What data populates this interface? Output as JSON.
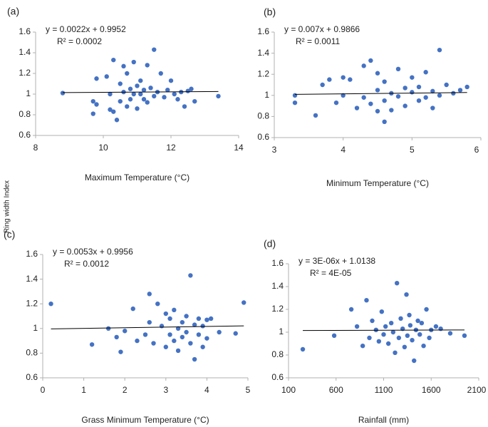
{
  "ylabel": "Ring width Index",
  "chart_data": [
    {
      "type": "scatter",
      "label": "(a)",
      "equation": "y = 0.0022x + 0.9952",
      "r_squared": "R² = 0.0002",
      "xlabel": "Maximum Temperature (°C)",
      "color": "#4472c4",
      "xlim": [
        8,
        14
      ],
      "ylim": [
        0.6,
        1.6
      ],
      "xticks": [
        8,
        10,
        12,
        14
      ],
      "yticks": [
        0.6,
        0.8,
        1,
        1.2,
        1.4,
        1.6
      ],
      "trendline": {
        "slope": 0.0022,
        "intercept": 0.9952
      },
      "x": [
        8.8,
        9.7,
        9.7,
        9.8,
        9.8,
        10.1,
        10.2,
        10.2,
        10.3,
        10.3,
        10.4,
        10.5,
        10.5,
        10.6,
        10.6,
        10.7,
        10.7,
        10.8,
        10.8,
        10.9,
        10.9,
        11.0,
        11.0,
        11.1,
        11.1,
        11.2,
        11.2,
        11.3,
        11.3,
        11.4,
        11.5,
        11.5,
        11.6,
        11.7,
        11.8,
        11.9,
        12.0,
        12.1,
        12.2,
        12.3,
        12.4,
        12.5,
        12.6,
        12.7,
        13.4
      ],
      "values": [
        1.01,
        0.93,
        0.81,
        1.15,
        0.9,
        1.17,
        0.85,
        1.0,
        1.33,
        0.83,
        0.75,
        1.1,
        0.93,
        1.02,
        1.27,
        0.88,
        1.2,
        1.05,
        0.95,
        1.31,
        1.0,
        1.08,
        0.86,
        1.0,
        1.13,
        0.95,
        1.04,
        1.28,
        0.92,
        1.06,
        1.43,
        0.98,
        1.02,
        1.2,
        0.97,
        1.04,
        1.13,
        1.0,
        0.95,
        1.02,
        0.88,
        1.03,
        1.05,
        0.93,
        0.98
      ]
    },
    {
      "type": "scatter",
      "label": "(b)",
      "equation": "y = 0.007x + 0.9866",
      "r_squared": "R² = 0.0011",
      "xlabel": "Minimum Temperature (°C)",
      "color": "#4472c4",
      "xlim": [
        3,
        6
      ],
      "ylim": [
        0.6,
        1.6
      ],
      "xticks": [
        3,
        4,
        5,
        6
      ],
      "yticks": [
        0.6,
        0.8,
        1,
        1.2,
        1.4,
        1.6
      ],
      "trendline": {
        "slope": 0.007,
        "intercept": 0.9866
      },
      "x": [
        3.3,
        3.3,
        3.6,
        3.7,
        3.8,
        3.9,
        4.0,
        4.0,
        4.1,
        4.2,
        4.3,
        4.3,
        4.4,
        4.4,
        4.5,
        4.5,
        4.5,
        4.6,
        4.6,
        4.6,
        4.7,
        4.7,
        4.8,
        4.8,
        4.9,
        4.9,
        5.0,
        5.0,
        5.1,
        5.1,
        5.2,
        5.2,
        5.3,
        5.3,
        5.4,
        5.4,
        5.5,
        5.6,
        5.7,
        5.8
      ],
      "values": [
        1.0,
        0.93,
        0.81,
        1.1,
        1.15,
        0.93,
        1.17,
        1.0,
        1.15,
        0.88,
        1.28,
        0.98,
        1.33,
        0.92,
        1.21,
        0.85,
        1.05,
        0.75,
        1.13,
        0.95,
        1.02,
        0.86,
        1.25,
        0.99,
        1.07,
        0.9,
        1.17,
        1.03,
        0.95,
        1.08,
        1.22,
        0.98,
        1.04,
        0.88,
        1.43,
        1.0,
        1.1,
        1.02,
        1.05,
        1.08
      ]
    },
    {
      "type": "scatter",
      "label": "(c)",
      "equation": "y = 0.0053x + 0.9956",
      "r_squared": "R² = 0.0012",
      "xlabel": "Grass Minimum Temperature (°C)",
      "color": "#4472c4",
      "xlim": [
        0,
        5
      ],
      "ylim": [
        0.6,
        1.6
      ],
      "xticks": [
        0,
        1,
        2,
        3,
        4,
        5
      ],
      "yticks": [
        0.6,
        0.8,
        1,
        1.2,
        1.4,
        1.6
      ],
      "trendline": {
        "slope": 0.0053,
        "intercept": 0.9956
      },
      "x": [
        0.2,
        1.2,
        1.6,
        1.8,
        1.9,
        2.0,
        2.2,
        2.3,
        2.5,
        2.6,
        2.6,
        2.7,
        2.8,
        2.9,
        3.0,
        3.0,
        3.1,
        3.1,
        3.2,
        3.2,
        3.3,
        3.3,
        3.4,
        3.4,
        3.5,
        3.5,
        3.6,
        3.6,
        3.7,
        3.7,
        3.8,
        3.8,
        3.9,
        3.9,
        4.0,
        4.0,
        4.1,
        4.3,
        4.7,
        4.9
      ],
      "values": [
        1.2,
        0.87,
        1.0,
        0.93,
        0.81,
        0.98,
        1.16,
        0.9,
        0.95,
        1.28,
        1.05,
        0.88,
        1.2,
        1.02,
        0.85,
        1.12,
        0.95,
        1.08,
        0.9,
        1.15,
        1.0,
        0.82,
        1.05,
        0.93,
        1.1,
        0.97,
        1.43,
        0.88,
        1.03,
        0.75,
        1.08,
        0.95,
        1.02,
        0.85,
        1.07,
        0.92,
        1.08,
        0.97,
        0.96,
        1.21
      ]
    },
    {
      "type": "scatter",
      "label": "(d)",
      "equation": "y = 3E-06x + 1.0138",
      "r_squared": "R² = 4E-05",
      "xlabel": "Rainfall (mm)",
      "color": "#4472c4",
      "xlim": [
        100,
        2100
      ],
      "ylim": [
        0.6,
        1.6
      ],
      "xticks": [
        100,
        600,
        1100,
        1600,
        2100
      ],
      "yticks": [
        0.6,
        0.8,
        1,
        1.2,
        1.4,
        1.6
      ],
      "trendline": {
        "slope": 3e-06,
        "intercept": 1.0138
      },
      "x": [
        250,
        580,
        760,
        820,
        880,
        920,
        950,
        980,
        1020,
        1050,
        1080,
        1100,
        1120,
        1150,
        1180,
        1200,
        1220,
        1240,
        1260,
        1280,
        1300,
        1320,
        1340,
        1350,
        1370,
        1380,
        1400,
        1420,
        1440,
        1460,
        1480,
        1500,
        1520,
        1550,
        1580,
        1600,
        1650,
        1700,
        1800,
        1950
      ],
      "values": [
        0.85,
        0.97,
        1.2,
        1.05,
        0.88,
        1.28,
        0.95,
        1.1,
        1.02,
        0.92,
        1.18,
        0.98,
        1.05,
        0.9,
        1.08,
        1.0,
        0.82,
        1.43,
        0.95,
        1.12,
        1.03,
        0.87,
        1.33,
        0.97,
        1.15,
        1.06,
        0.93,
        0.75,
        1.02,
        1.1,
        0.98,
        1.08,
        0.88,
        1.2,
        0.95,
        1.02,
        1.05,
        1.03,
        0.99,
        0.97
      ]
    }
  ]
}
